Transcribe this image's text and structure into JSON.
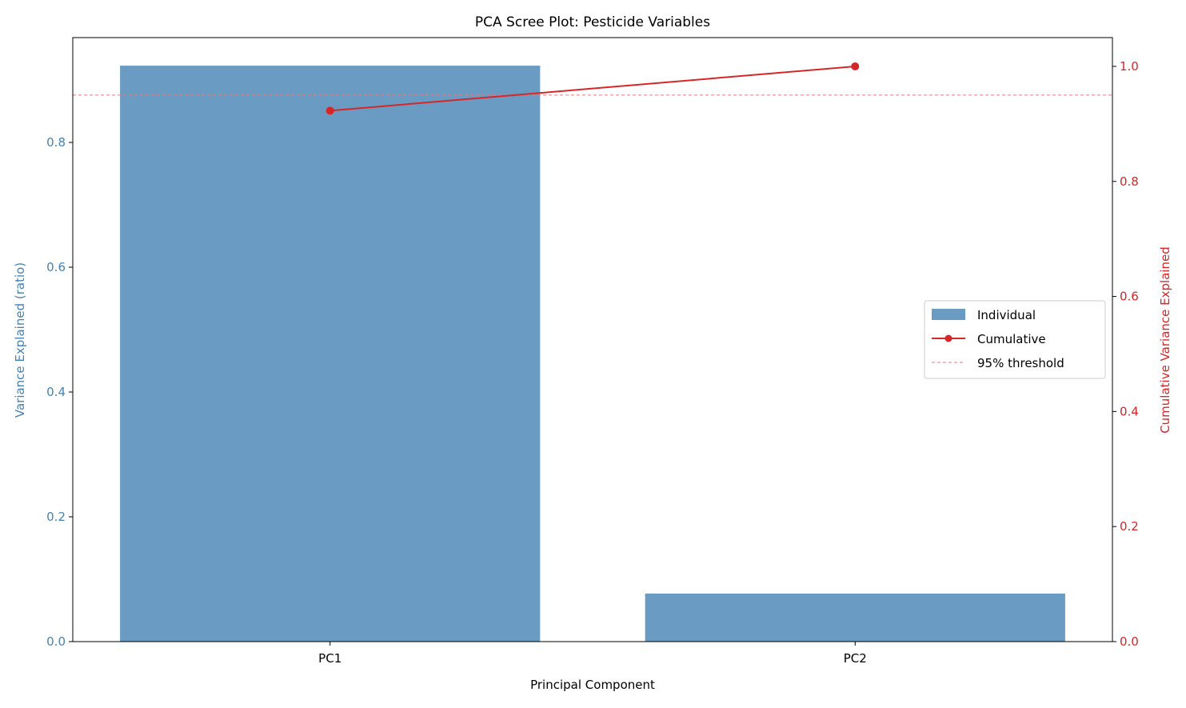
{
  "chart_data": {
    "type": "bar+line",
    "title": "PCA Scree Plot: Pesticide Variables",
    "xlabel": "Principal Component",
    "ylabel_left": "Variance Explained (ratio)",
    "ylabel_right": "Cumulative Variance Explained",
    "categories": [
      "PC1",
      "PC2"
    ],
    "series": [
      {
        "name": "Individual",
        "type": "bar",
        "axis": "left",
        "values": [
          0.923,
          0.077
        ],
        "color": "#6a9bc3"
      },
      {
        "name": "Cumulative",
        "type": "line",
        "axis": "right",
        "values": [
          0.923,
          1.0
        ],
        "color": "#d62728"
      }
    ],
    "threshold": {
      "name": "95% threshold",
      "value": 0.95,
      "axis": "right",
      "color": "#e8797a"
    },
    "ylim_left": [
      0,
      0.968
    ],
    "ylim_right": [
      0,
      1.05
    ],
    "yticks_left": [
      "0.0",
      "0.2",
      "0.4",
      "0.6",
      "0.8"
    ],
    "yticks_right": [
      "0.0",
      "0.2",
      "0.4",
      "0.6",
      "0.8",
      "1.0"
    ],
    "left_axis_color": "#4682b4",
    "right_axis_color": "#d62728",
    "grid": false,
    "legend_position": "center-right"
  }
}
